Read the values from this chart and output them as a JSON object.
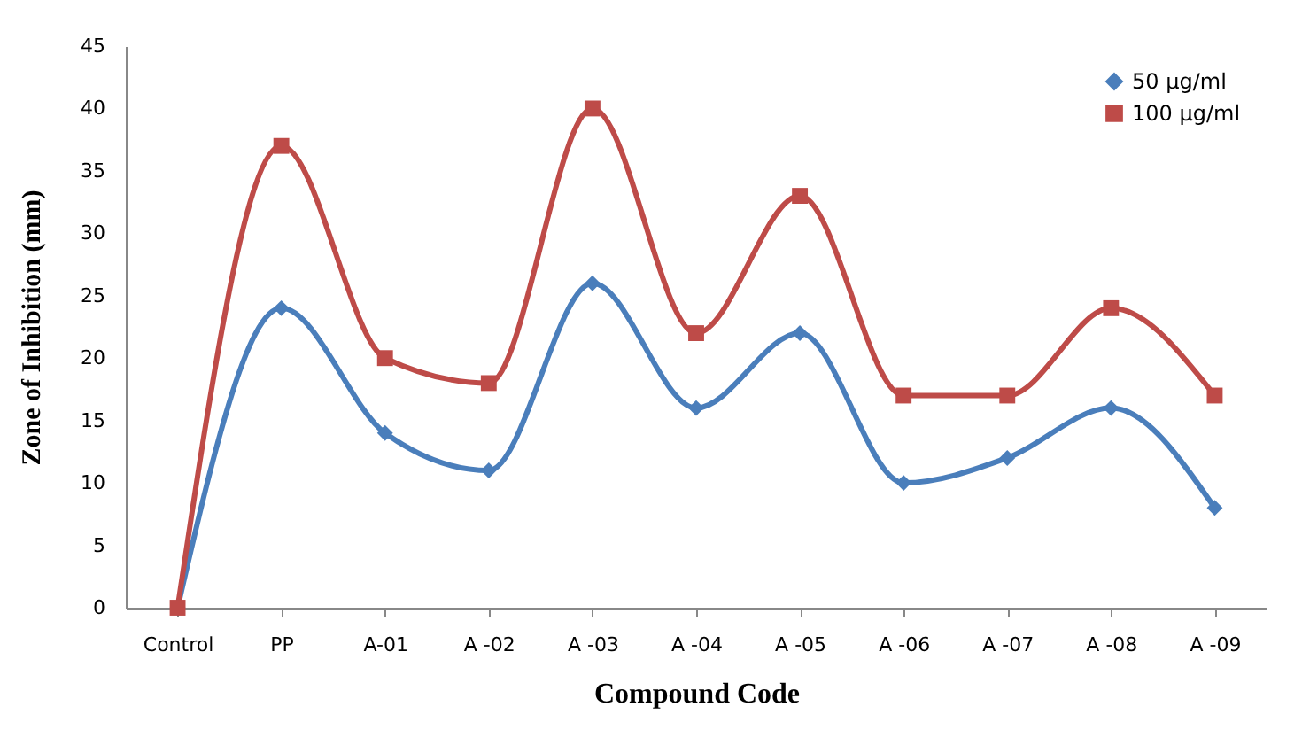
{
  "chart_data": {
    "type": "line",
    "xlabel": "Compound Code",
    "ylabel": "Zone of Inhibition (mm)",
    "categories": [
      "Control",
      "PP",
      "A-01",
      "A -02",
      "A -03",
      "A -04",
      "A -05",
      "A -06",
      "A -07",
      "A -08",
      "A -09"
    ],
    "series": [
      {
        "name": "50 µg/ml",
        "color": "#4a7ebb",
        "marker": "diamond",
        "values": [
          0,
          24,
          14,
          11,
          26,
          16,
          22,
          10,
          12,
          16,
          8
        ]
      },
      {
        "name": "100 µg/ml",
        "color": "#be4b48",
        "marker": "square",
        "values": [
          0,
          37,
          20,
          18,
          40,
          22,
          33,
          17,
          17,
          24,
          17
        ]
      }
    ],
    "ylim": [
      0,
      45
    ],
    "yticks": [
      0,
      5,
      10,
      15,
      20,
      25,
      30,
      35,
      40,
      45
    ],
    "grid": false,
    "legend": "top right",
    "line_style": "solid"
  }
}
